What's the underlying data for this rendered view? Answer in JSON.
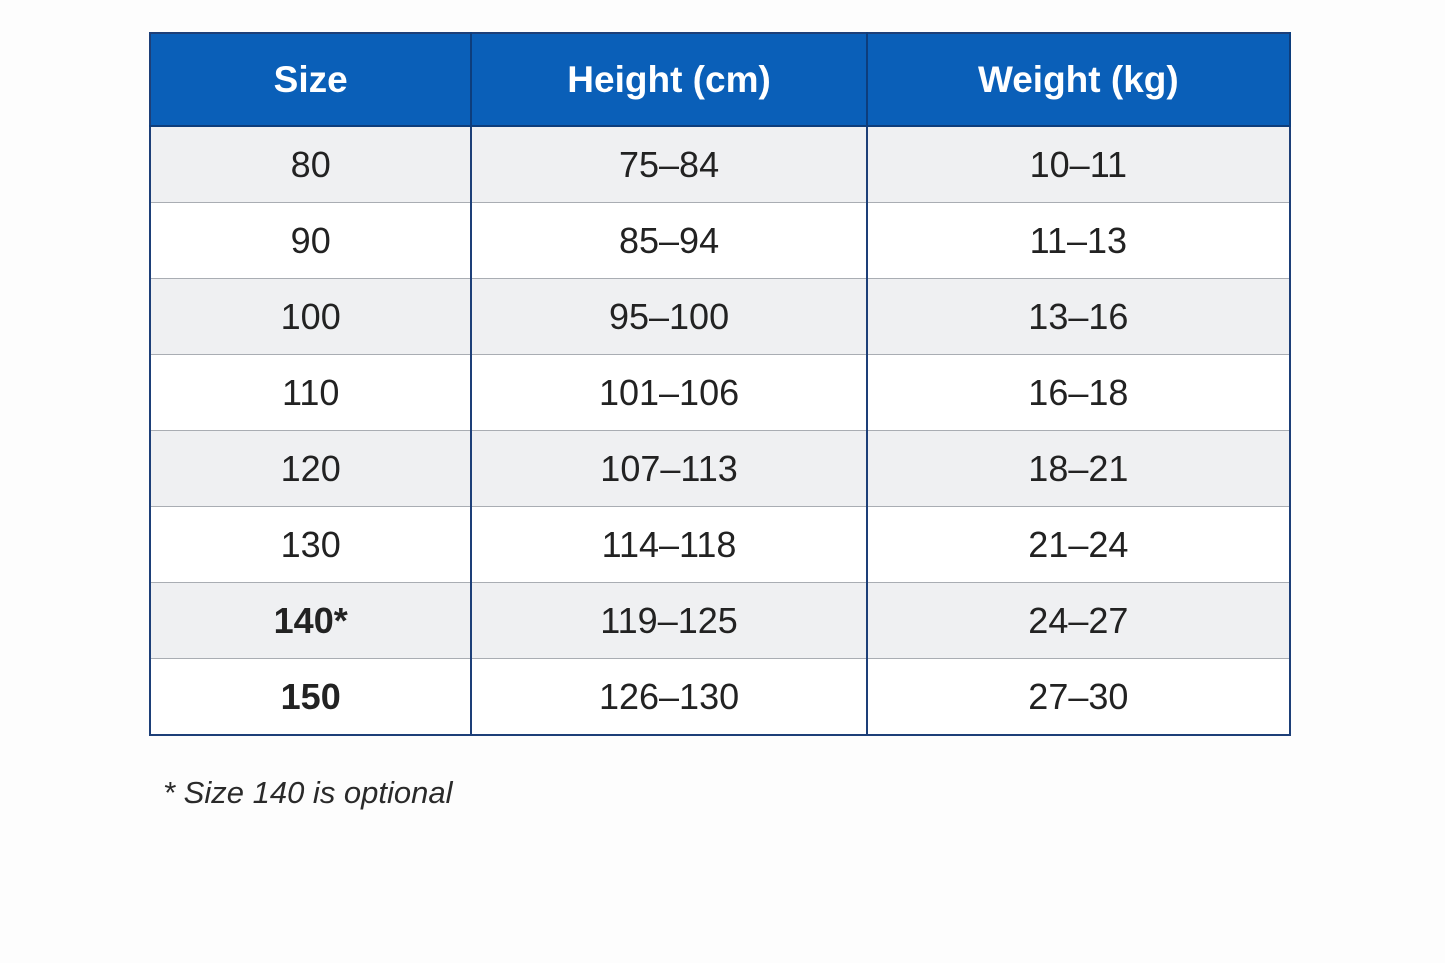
{
  "table": {
    "header": [
      "Size",
      "Height (cm)",
      "Weight (kg)"
    ],
    "rows": [
      [
        "80",
        "75–84",
        "10–11"
      ],
      [
        "90",
        "85–94",
        "11–13"
      ],
      [
        "100",
        "95–100",
        "13–16"
      ],
      [
        "110",
        "101–106",
        "16–18"
      ],
      [
        "120",
        "107–113",
        "18–21"
      ],
      [
        "130",
        "114–118",
        "21–24"
      ],
      [
        "140*",
        "119–125",
        "24–27"
      ],
      [
        "150",
        "126–130",
        "27–30"
      ]
    ]
  },
  "footnote": "* Size 140 is optional"
}
